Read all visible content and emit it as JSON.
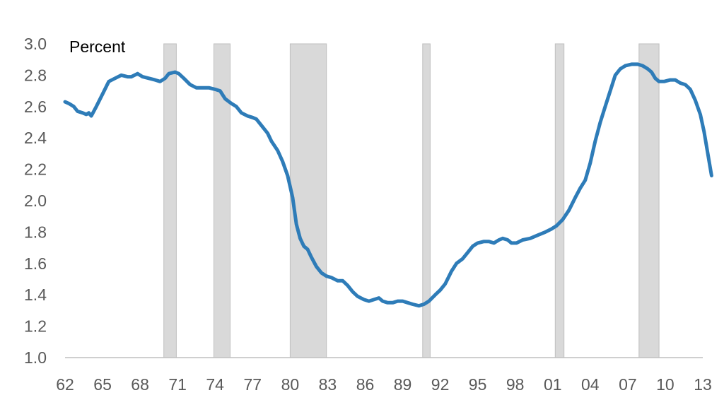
{
  "chart_data": {
    "type": "line",
    "title": "",
    "ylabel": "",
    "unit_label": "Percent",
    "xlabel": "",
    "ylim": [
      1.0,
      3.0
    ],
    "xlim": [
      1962,
      2013
    ],
    "y_ticks": [
      "1.0",
      "1.2",
      "1.4",
      "1.6",
      "1.8",
      "2.0",
      "2.2",
      "2.4",
      "2.6",
      "2.8",
      "3.0"
    ],
    "x_ticks": [
      "62",
      "65",
      "68",
      "71",
      "74",
      "77",
      "80",
      "83",
      "86",
      "89",
      "92",
      "95",
      "98",
      "01",
      "04",
      "07",
      "10",
      "13"
    ],
    "grid": false,
    "legend": "none",
    "colors": {
      "line": "#2e7cb8",
      "recession": "#d9d9d9",
      "recession_edge": "#bfbfbf",
      "axis": "#bfbfbf"
    },
    "recessions": [
      [
        1969.9,
        1970.9
      ],
      [
        1973.9,
        1975.2
      ],
      [
        1980.0,
        1982.9
      ],
      [
        1990.6,
        1991.2
      ],
      [
        2001.2,
        2001.9
      ],
      [
        2007.9,
        2009.5
      ]
    ],
    "series": [
      {
        "points": [
          [
            1962.0,
            2.63
          ],
          [
            1962.3,
            2.62
          ],
          [
            1962.7,
            2.6
          ],
          [
            1963.0,
            2.57
          ],
          [
            1963.4,
            2.56
          ],
          [
            1963.7,
            2.55
          ],
          [
            1963.9,
            2.56
          ],
          [
            1964.1,
            2.54
          ],
          [
            1964.5,
            2.6
          ],
          [
            1965.0,
            2.68
          ],
          [
            1965.5,
            2.76
          ],
          [
            1966.0,
            2.78
          ],
          [
            1966.5,
            2.8
          ],
          [
            1967.0,
            2.79
          ],
          [
            1967.3,
            2.79
          ],
          [
            1967.8,
            2.81
          ],
          [
            1968.2,
            2.79
          ],
          [
            1968.7,
            2.78
          ],
          [
            1969.2,
            2.77
          ],
          [
            1969.6,
            2.76
          ],
          [
            1970.0,
            2.78
          ],
          [
            1970.3,
            2.81
          ],
          [
            1970.8,
            2.82
          ],
          [
            1971.1,
            2.81
          ],
          [
            1971.5,
            2.78
          ],
          [
            1972.0,
            2.74
          ],
          [
            1972.5,
            2.72
          ],
          [
            1973.0,
            2.72
          ],
          [
            1973.5,
            2.72
          ],
          [
            1974.0,
            2.71
          ],
          [
            1974.4,
            2.7
          ],
          [
            1974.8,
            2.65
          ],
          [
            1975.3,
            2.62
          ],
          [
            1975.7,
            2.6
          ],
          [
            1976.1,
            2.56
          ],
          [
            1976.6,
            2.54
          ],
          [
            1977.0,
            2.53
          ],
          [
            1977.3,
            2.52
          ],
          [
            1977.7,
            2.48
          ],
          [
            1978.2,
            2.43
          ],
          [
            1978.5,
            2.38
          ],
          [
            1979.0,
            2.32
          ],
          [
            1979.4,
            2.25
          ],
          [
            1979.8,
            2.16
          ],
          [
            1980.2,
            2.02
          ],
          [
            1980.5,
            1.85
          ],
          [
            1980.8,
            1.76
          ],
          [
            1981.1,
            1.71
          ],
          [
            1981.4,
            1.69
          ],
          [
            1981.7,
            1.64
          ],
          [
            1982.1,
            1.58
          ],
          [
            1982.5,
            1.54
          ],
          [
            1982.9,
            1.52
          ],
          [
            1983.3,
            1.51
          ],
          [
            1983.8,
            1.49
          ],
          [
            1984.2,
            1.49
          ],
          [
            1984.6,
            1.46
          ],
          [
            1985.0,
            1.42
          ],
          [
            1985.4,
            1.39
          ],
          [
            1985.9,
            1.37
          ],
          [
            1986.3,
            1.36
          ],
          [
            1986.7,
            1.37
          ],
          [
            1987.1,
            1.38
          ],
          [
            1987.4,
            1.36
          ],
          [
            1987.8,
            1.35
          ],
          [
            1988.2,
            1.35
          ],
          [
            1988.6,
            1.36
          ],
          [
            1989.0,
            1.36
          ],
          [
            1989.4,
            1.35
          ],
          [
            1989.8,
            1.34
          ],
          [
            1990.3,
            1.33
          ],
          [
            1990.7,
            1.34
          ],
          [
            1991.1,
            1.36
          ],
          [
            1991.6,
            1.4
          ],
          [
            1992.0,
            1.43
          ],
          [
            1992.4,
            1.47
          ],
          [
            1992.9,
            1.55
          ],
          [
            1993.3,
            1.6
          ],
          [
            1993.8,
            1.63
          ],
          [
            1994.2,
            1.67
          ],
          [
            1994.6,
            1.71
          ],
          [
            1995.0,
            1.73
          ],
          [
            1995.5,
            1.74
          ],
          [
            1995.9,
            1.74
          ],
          [
            1996.3,
            1.73
          ],
          [
            1996.7,
            1.75
          ],
          [
            1997.0,
            1.76
          ],
          [
            1997.4,
            1.75
          ],
          [
            1997.7,
            1.73
          ],
          [
            1998.1,
            1.73
          ],
          [
            1998.6,
            1.75
          ],
          [
            1999.2,
            1.76
          ],
          [
            1999.8,
            1.78
          ],
          [
            2000.4,
            1.8
          ],
          [
            2000.9,
            1.82
          ],
          [
            2001.3,
            1.84
          ],
          [
            2001.8,
            1.88
          ],
          [
            2002.3,
            1.94
          ],
          [
            2002.8,
            2.02
          ],
          [
            2003.2,
            2.08
          ],
          [
            2003.6,
            2.13
          ],
          [
            2004.0,
            2.24
          ],
          [
            2004.4,
            2.38
          ],
          [
            2004.8,
            2.5
          ],
          [
            2005.2,
            2.6
          ],
          [
            2005.6,
            2.7
          ],
          [
            2006.0,
            2.8
          ],
          [
            2006.4,
            2.84
          ],
          [
            2006.8,
            2.86
          ],
          [
            2007.3,
            2.87
          ],
          [
            2007.8,
            2.87
          ],
          [
            2008.2,
            2.86
          ],
          [
            2008.6,
            2.84
          ],
          [
            2008.9,
            2.82
          ],
          [
            2009.2,
            2.78
          ],
          [
            2009.5,
            2.76
          ],
          [
            2009.9,
            2.76
          ],
          [
            2010.4,
            2.77
          ],
          [
            2010.8,
            2.77
          ],
          [
            2011.2,
            2.75
          ],
          [
            2011.6,
            2.74
          ],
          [
            2012.0,
            2.71
          ],
          [
            2012.4,
            2.64
          ],
          [
            2012.8,
            2.55
          ],
          [
            2013.1,
            2.44
          ],
          [
            2013.4,
            2.3
          ],
          [
            2013.7,
            2.16
          ]
        ]
      }
    ]
  }
}
